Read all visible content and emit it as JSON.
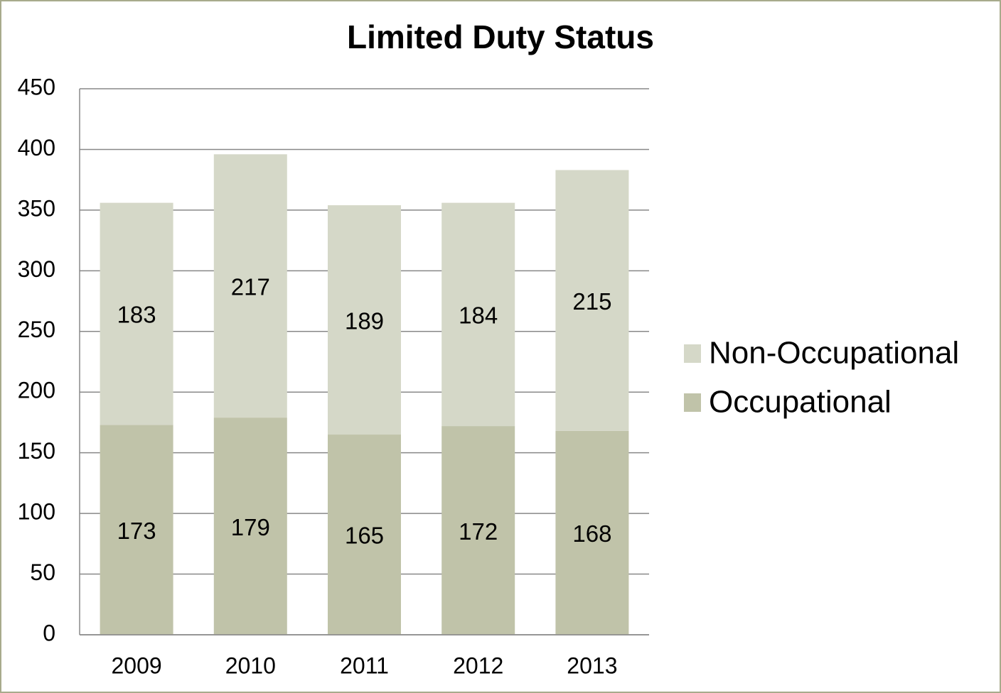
{
  "chart_data": {
    "type": "stacked_bar",
    "title": "Limited Duty Status",
    "categories": [
      "2009",
      "2010",
      "2011",
      "2012",
      "2013"
    ],
    "series": [
      {
        "name": "Occupational",
        "color": "#c0c3a9",
        "values": [
          173,
          179,
          165,
          172,
          168
        ]
      },
      {
        "name": "Non-Occupational",
        "color": "#d5d8c8",
        "values": [
          183,
          217,
          189,
          184,
          215
        ]
      }
    ],
    "ylim": [
      0,
      450
    ],
    "yticks": [
      0,
      50,
      100,
      150,
      200,
      250,
      300,
      350,
      400,
      450
    ],
    "grid": true,
    "legend": "right"
  }
}
